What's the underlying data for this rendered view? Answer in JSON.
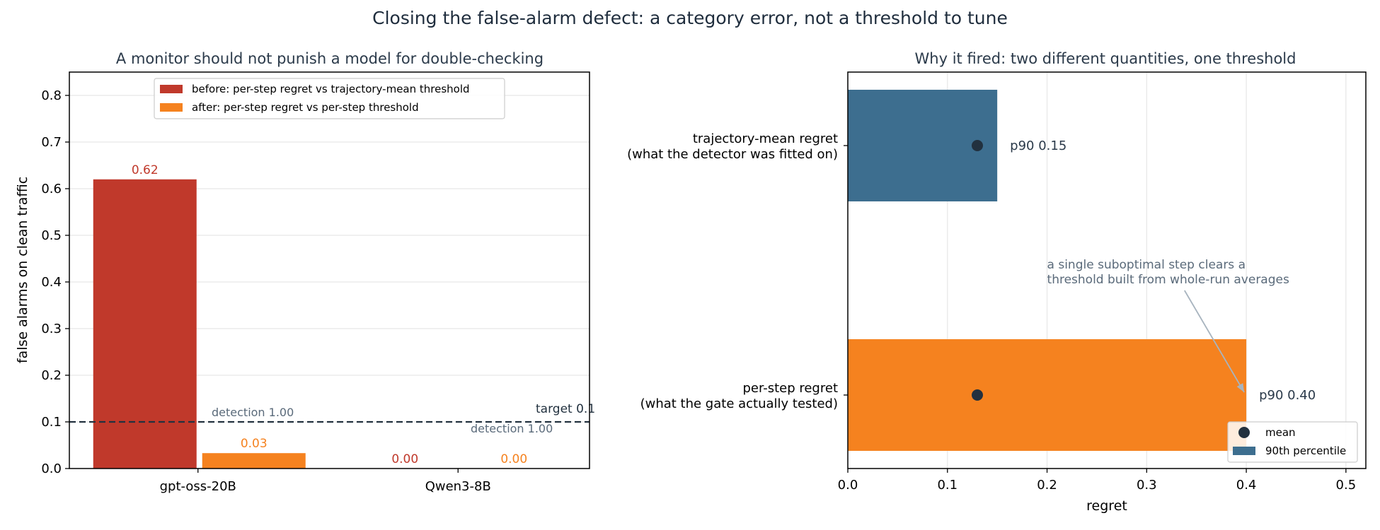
{
  "suptitle": "Closing the false-alarm defect: a category error, not a threshold to tune",
  "colors": {
    "before": "#c0392b",
    "after": "#f5821f",
    "traj": "#3d6e8f",
    "step": "#f5821f",
    "mean_dot": "#22313f",
    "target_line": "#22313f",
    "note": "#5a6a7a",
    "arrow": "#a8b4bf"
  },
  "chart_data": [
    {
      "type": "bar",
      "title": "A monitor should not punish a model for double-checking",
      "ylabel": "false alarms on clean traffic",
      "xlabel": "",
      "ylim": [
        0,
        0.85
      ],
      "yticks": [
        "0.0",
        "0.1",
        "0.2",
        "0.3",
        "0.4",
        "0.5",
        "0.6",
        "0.7",
        "0.8"
      ],
      "ytick_values": [
        0,
        0.1,
        0.2,
        0.3,
        0.4,
        0.5,
        0.6,
        0.7,
        0.8
      ],
      "categories": [
        "gpt-oss-20B",
        "Qwen3-8B"
      ],
      "grid": "horizontal",
      "legend_placement": "top-center",
      "series": [
        {
          "name": "before: per-step regret vs trajectory-mean threshold",
          "values": [
            0.62,
            0.0
          ],
          "value_labels": [
            "0.62",
            "0.00"
          ]
        },
        {
          "name": "after: per-step regret vs per-step threshold",
          "values": [
            0.033,
            0.0
          ],
          "value_labels": [
            "0.03",
            "0.00"
          ]
        }
      ],
      "reference_line": {
        "value": 0.1,
        "label": "target 0.1",
        "style": "dashed"
      },
      "annotations": [
        "detection 1.00",
        "detection 1.00"
      ]
    },
    {
      "type": "bar",
      "orientation": "horizontal",
      "title": "Why it fired: two different quantities, one threshold",
      "xlabel": "regret",
      "ylabel": "",
      "xlim": [
        0,
        0.52
      ],
      "xticks": [
        "0.0",
        "0.1",
        "0.2",
        "0.3",
        "0.4",
        "0.5"
      ],
      "xtick_values": [
        0,
        0.1,
        0.2,
        0.3,
        0.4,
        0.5
      ],
      "grid": "vertical",
      "legend_placement": "bottom-right",
      "categories": [
        [
          "trajectory-mean regret",
          "(what the detector was fitted on)"
        ],
        [
          "per-step regret",
          "(what the gate actually tested)"
        ]
      ],
      "series": [
        {
          "name": "90th percentile",
          "values": [
            0.15,
            0.4
          ],
          "value_labels": [
            "p90 0.15",
            "p90 0.40"
          ]
        },
        {
          "name": "mean",
          "values": [
            0.13,
            0.13
          ]
        }
      ],
      "annotation": {
        "lines": [
          "a single suboptimal step clears a",
          "threshold built from whole-run averages"
        ],
        "points_to": {
          "x": 0.4,
          "category": 1
        }
      }
    }
  ]
}
